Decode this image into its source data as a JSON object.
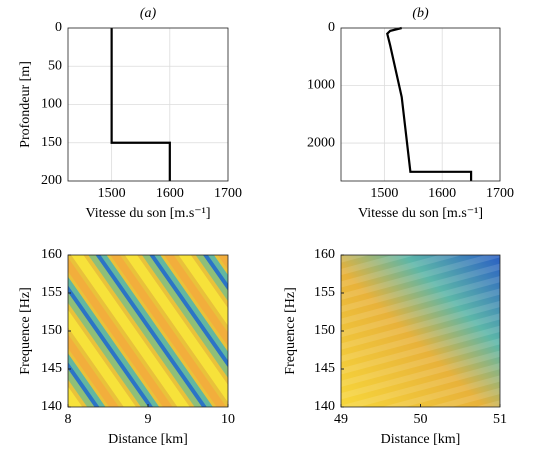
{
  "chart_data": [
    {
      "type": "line",
      "title": "(a)",
      "xlabel": "Vitesse du son [m.s⁻¹]",
      "ylabel": "Profondeur [m]",
      "x": [
        1500,
        1500,
        1600,
        1600
      ],
      "series": [
        {
          "color": "#000000",
          "values": [
            0,
            150,
            150,
            200
          ]
        }
      ],
      "xlim": [
        1425,
        1700
      ],
      "xticks": [
        1500,
        1600,
        1700
      ],
      "ylim": [
        0,
        200
      ],
      "yticks": [
        0,
        50,
        100,
        150,
        200
      ],
      "y_inverted": true,
      "grid": true
    },
    {
      "type": "line",
      "title": "(b)",
      "xlabel": "Vitesse du son [m.s⁻¹]",
      "x": [
        1530,
        1510,
        1505,
        1510,
        1530,
        1545,
        1650,
        1650
      ],
      "series": [
        {
          "color": "#000000",
          "values": [
            0,
            50,
            100,
            300,
            1200,
            2500,
            2500,
            2660
          ]
        }
      ],
      "xlim": [
        1425,
        1700
      ],
      "xticks": [
        1500,
        1600,
        1700
      ],
      "ylim": [
        0,
        2660
      ],
      "yticks": [
        0,
        1000,
        2000
      ],
      "y_inverted": true,
      "grid": true
    },
    {
      "type": "heatmap",
      "xlabel": "Distance [km]",
      "ylabel": "Frequence [Hz]",
      "xlim": [
        8,
        10
      ],
      "xticks": [
        8,
        9,
        10
      ],
      "ylim": [
        140,
        160
      ],
      "yticks": [
        140,
        145,
        150,
        155,
        160
      ]
    },
    {
      "type": "heatmap",
      "xlabel": "Distance [km]",
      "ylabel": "Frequence [Hz]",
      "xlim": [
        49,
        51
      ],
      "xticks": [
        49,
        50,
        51
      ],
      "ylim": [
        140,
        160
      ],
      "yticks": [
        140,
        145,
        150,
        155,
        160
      ]
    }
  ]
}
